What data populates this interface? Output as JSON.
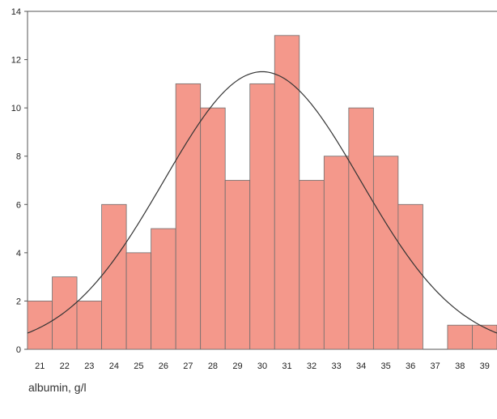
{
  "chart_data": {
    "type": "bar",
    "title": "",
    "xlabel": "albumin, g/l",
    "ylabel": "",
    "categories": [
      "21",
      "22",
      "23",
      "24",
      "25",
      "26",
      "27",
      "28",
      "29",
      "30",
      "31",
      "32",
      "33",
      "34",
      "35",
      "36",
      "37",
      "38",
      "39"
    ],
    "values": [
      2,
      3,
      2,
      6,
      4,
      5,
      11,
      10,
      7,
      11,
      13,
      7,
      8,
      10,
      8,
      6,
      0,
      1,
      1
    ],
    "ylim": [
      0,
      14
    ],
    "yticks": [
      0,
      2,
      4,
      6,
      8,
      10,
      12,
      14
    ],
    "grid": false,
    "legend": "none",
    "overlay": {
      "type": "normal-curve",
      "mean": 30,
      "peak": 11.5
    },
    "colors": {
      "bar_fill": "#f4988b",
      "bar_stroke": "#6e6e6e",
      "curve": "#333333",
      "axis": "#555555"
    }
  }
}
